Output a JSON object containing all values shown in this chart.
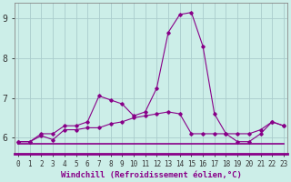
{
  "xlabel": "Windchill (Refroidissement éolien,°C)",
  "background_color": "#cceee8",
  "line_color": "#880088",
  "grid_color": "#aacccc",
  "x_values": [
    0,
    1,
    2,
    3,
    4,
    5,
    6,
    7,
    8,
    9,
    10,
    11,
    12,
    13,
    14,
    15,
    16,
    17,
    18,
    19,
    20,
    21,
    22,
    23
  ],
  "line1_y": [
    5.85,
    5.85,
    5.85,
    5.85,
    5.85,
    5.85,
    5.85,
    5.85,
    5.85,
    5.85,
    5.85,
    5.85,
    5.85,
    5.85,
    5.85,
    5.85,
    5.85,
    5.85,
    5.85,
    5.85,
    5.85,
    5.85,
    5.85,
    5.85
  ],
  "line2_y": [
    5.9,
    5.9,
    6.05,
    5.95,
    6.2,
    6.2,
    6.25,
    6.25,
    6.35,
    6.4,
    6.5,
    6.55,
    6.6,
    6.65,
    6.6,
    6.1,
    6.1,
    6.1,
    6.1,
    6.1,
    6.1,
    6.2,
    6.4,
    6.3
  ],
  "line3_y": [
    5.9,
    5.9,
    6.1,
    6.1,
    6.3,
    6.3,
    6.4,
    7.05,
    6.95,
    6.85,
    6.55,
    6.65,
    7.25,
    8.65,
    9.1,
    9.15,
    8.3,
    6.6,
    6.1,
    5.9,
    5.9,
    6.1,
    6.4,
    6.3
  ],
  "xlim": [
    -0.3,
    23.3
  ],
  "ylim": [
    5.6,
    9.4
  ],
  "yticks": [
    6,
    7,
    8,
    9
  ],
  "xticks": [
    0,
    1,
    2,
    3,
    4,
    5,
    6,
    7,
    8,
    9,
    10,
    11,
    12,
    13,
    14,
    15,
    16,
    17,
    18,
    19,
    20,
    21,
    22,
    23
  ],
  "tick_fontsize": 5.5,
  "xlabel_fontsize": 6.5,
  "axis_bar_color": "#880088"
}
